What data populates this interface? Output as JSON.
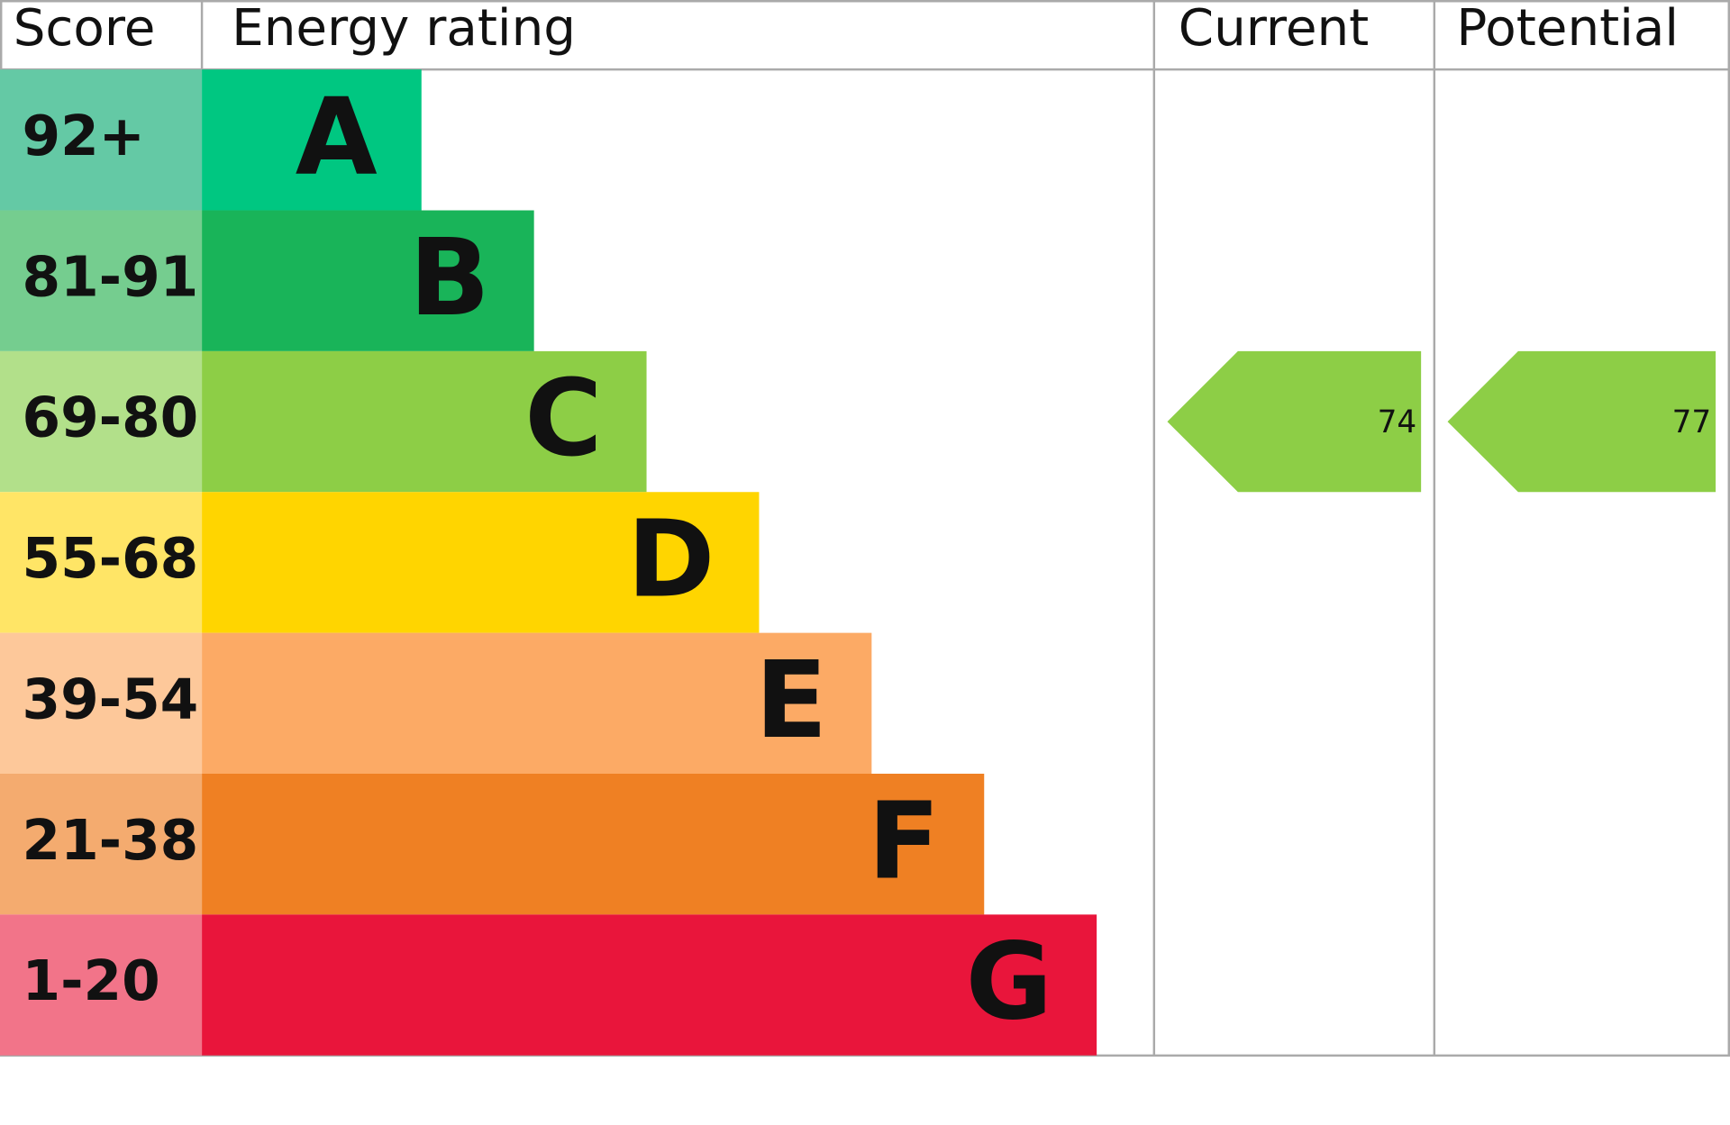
{
  "header": {
    "score": "Score",
    "energy_rating": "Energy rating",
    "current": "Current",
    "potential": "Potential"
  },
  "bands": [
    {
      "score": "92+",
      "letter": "A",
      "color": "#00c781",
      "score_color": "#64c9a5"
    },
    {
      "score": "81-91",
      "letter": "B",
      "color": "#19b459",
      "score_color": "#75cd8f"
    },
    {
      "score": "69-80",
      "letter": "C",
      "color": "#8dce46",
      "score_color": "#b2e08a"
    },
    {
      "score": "55-68",
      "letter": "D",
      "color": "#ffd500",
      "score_color": "#ffe566"
    },
    {
      "score": "39-54",
      "letter": "E",
      "color": "#fcaa65",
      "score_color": "#fdc89a"
    },
    {
      "score": "21-38",
      "letter": "F",
      "color": "#ef8023",
      "score_color": "#f4ab6f"
    },
    {
      "score": "1-20",
      "letter": "G",
      "color": "#e9153b",
      "score_color": "#f27489"
    }
  ],
  "current": {
    "value": 74
  },
  "potential": {
    "value": 77
  }
}
